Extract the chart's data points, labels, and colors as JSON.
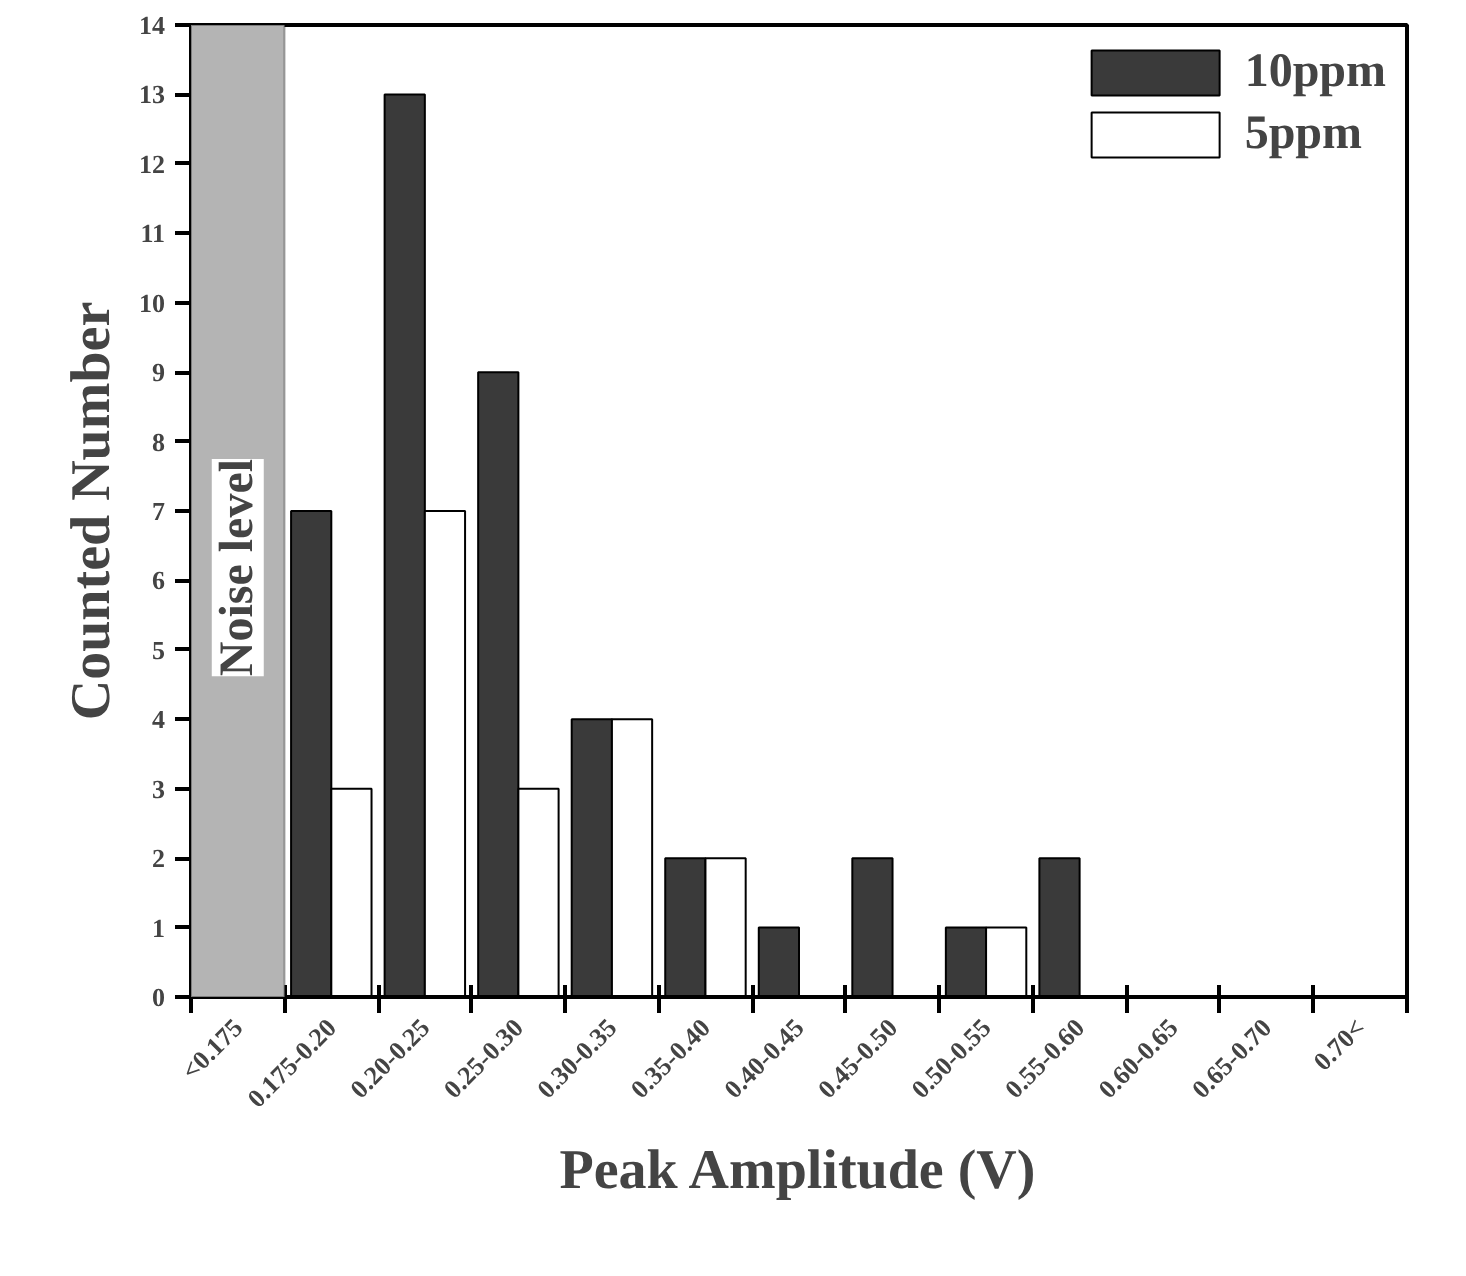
{
  "chart_data": {
    "type": "bar",
    "xlabel": "Peak Amplitude (V)",
    "ylabel": "Counted Number",
    "categories": [
      "<0.175",
      "0.175-0.20",
      "0.20-0.25",
      "0.25-0.30",
      "0.30-0.35",
      "0.35-0.40",
      "0.40-0.45",
      "0.45-0.50",
      "0.50-0.55",
      "0.55-0.60",
      "0.60-0.65",
      "0.65-0.70",
      "0.70<"
    ],
    "series": [
      {
        "name": "10ppm",
        "color": "#3a3a3a",
        "values": [
          0,
          7,
          13,
          9,
          4,
          2,
          1,
          2,
          1,
          2,
          0,
          0,
          0
        ]
      },
      {
        "name": "5ppm",
        "color": "#ffffff",
        "values": [
          0,
          3,
          7,
          3,
          4,
          2,
          0,
          0,
          1,
          0,
          0,
          0,
          0
        ]
      }
    ],
    "ylim": [
      0,
      14
    ],
    "yticks": [
      0,
      1,
      2,
      3,
      4,
      5,
      6,
      7,
      8,
      9,
      10,
      11,
      12,
      13,
      14
    ],
    "bands": [
      {
        "axis": "x",
        "from": "<0.175",
        "to": "<0.175",
        "label": "Noise level",
        "color": "#b4b4b4"
      }
    ],
    "legend": "top right",
    "grid": false
  }
}
